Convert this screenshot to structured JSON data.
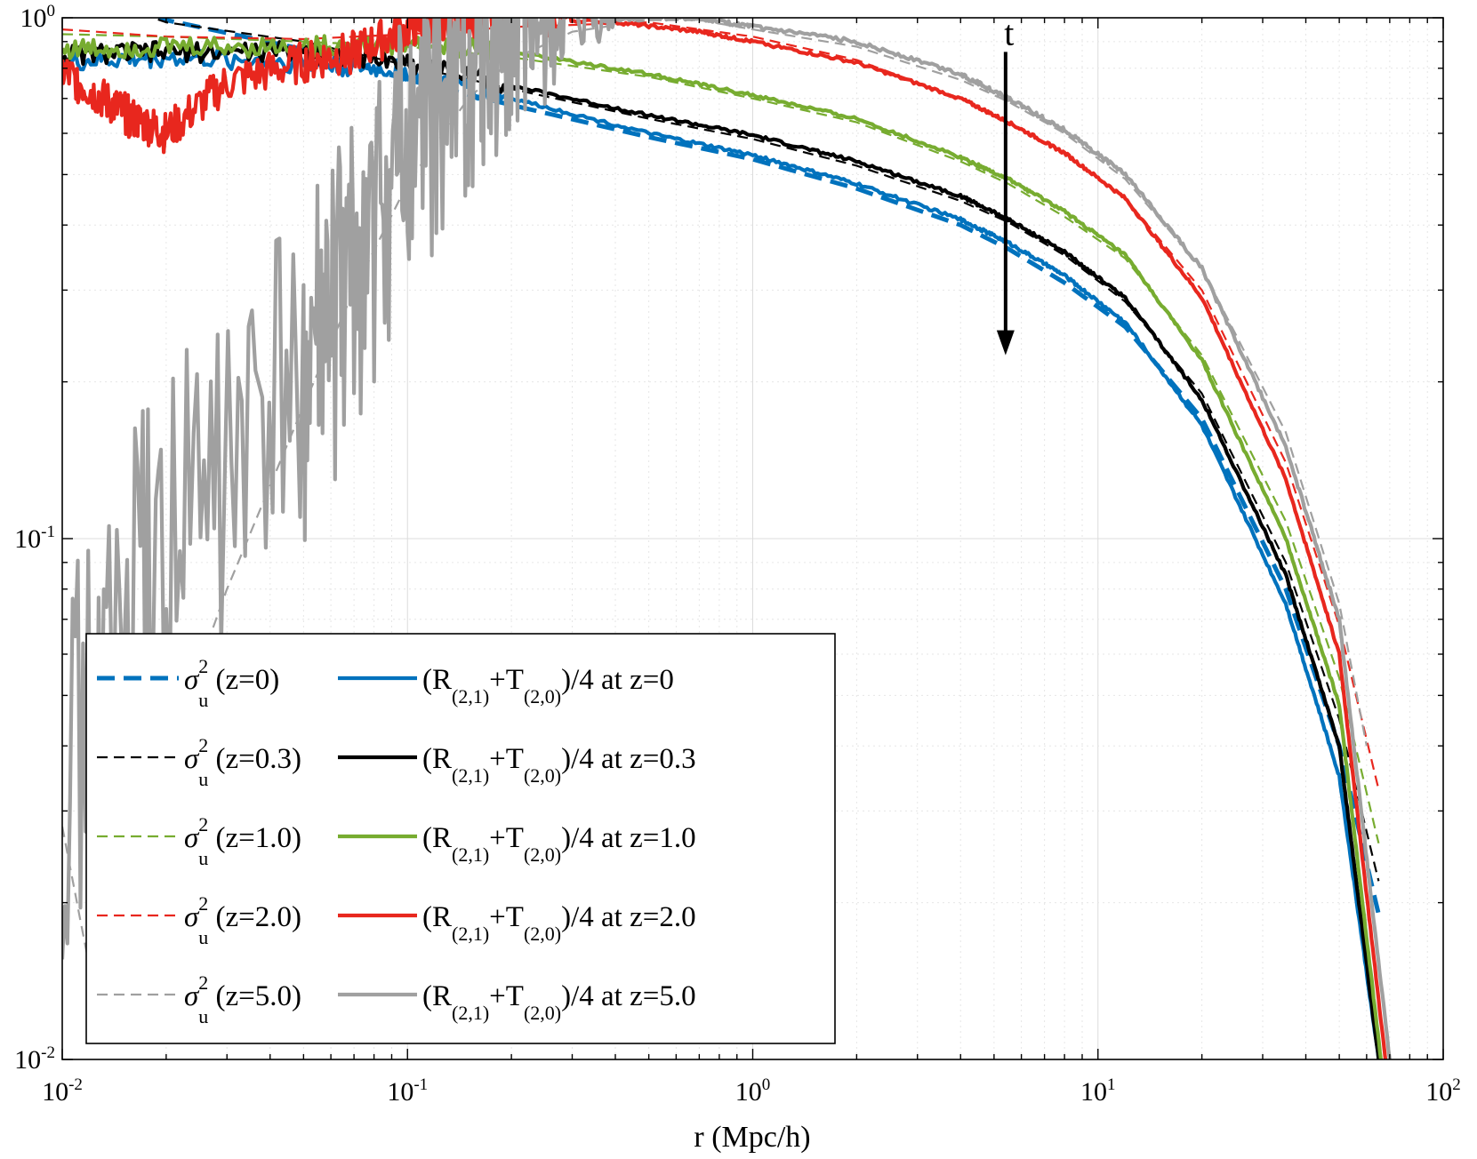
{
  "chart_data": {
    "type": "line",
    "title": "",
    "xlabel": "r (Mpc/h)",
    "ylabel": "",
    "xscale": "log",
    "yscale": "log",
    "xlim": [
      0.01,
      100
    ],
    "ylim": [
      0.01,
      1
    ],
    "grid": true,
    "x_ticks": [
      {
        "base": "10",
        "exp": "-2"
      },
      {
        "base": "10",
        "exp": "-1"
      },
      {
        "base": "10",
        "exp": "0"
      },
      {
        "base": "10",
        "exp": "1"
      },
      {
        "base": "10",
        "exp": "2"
      }
    ],
    "y_ticks": [
      {
        "base": "10",
        "exp": "-2"
      },
      {
        "base": "10",
        "exp": "-1"
      },
      {
        "base": "10",
        "exp": "0"
      }
    ],
    "annotation": {
      "text": "t",
      "x": 5.4,
      "y_from": 0.86,
      "y_to": 0.225
    },
    "legend": {
      "position": "bottom-left",
      "columns": 2,
      "sigma_label": {
        "symbol": "σ",
        "sup": "2",
        "sub": "u"
      },
      "ratio_label": {
        "open": "(R",
        "sub1": "(2,1)",
        "plus": "+T",
        "sub2": "(2,0)",
        "close": ")/4 at"
      }
    },
    "series": [
      {
        "kind": "model",
        "z": "z=0",
        "color": "#0072BD",
        "style": "dashed-thick",
        "x": [
          0.01,
          0.02,
          0.05,
          0.1,
          0.2,
          0.5,
          1,
          2,
          4,
          5.5,
          8,
          12,
          20,
          35,
          50,
          65
        ],
        "y": [
          1.25,
          0.99,
          0.87,
          0.76,
          0.68,
          0.59,
          0.535,
          0.47,
          0.4,
          0.36,
          0.31,
          0.255,
          0.17,
          0.08,
          0.04,
          0.019
        ]
      },
      {
        "kind": "model",
        "z": "z=0.3",
        "color": "#000000",
        "style": "dashed-thin",
        "x": [
          0.01,
          0.02,
          0.05,
          0.1,
          0.2,
          0.5,
          1,
          2,
          4,
          5.5,
          8,
          12,
          20,
          35,
          50,
          65
        ],
        "y": [
          1.15,
          0.98,
          0.9,
          0.81,
          0.73,
          0.64,
          0.585,
          0.52,
          0.445,
          0.405,
          0.35,
          0.285,
          0.19,
          0.09,
          0.045,
          0.022
        ]
      },
      {
        "kind": "model",
        "z": "z=1.0",
        "color": "#77AC30",
        "style": "dashed-thin",
        "x": [
          0.01,
          0.02,
          0.05,
          0.1,
          0.2,
          0.5,
          1,
          2,
          4,
          5.5,
          8,
          12,
          20,
          35,
          50,
          65
        ],
        "y": [
          0.93,
          0.92,
          0.9,
          0.88,
          0.84,
          0.77,
          0.7,
          0.63,
          0.53,
          0.48,
          0.415,
          0.345,
          0.225,
          0.108,
          0.054,
          0.026
        ]
      },
      {
        "kind": "model",
        "z": "z=2.0",
        "color": "#E8271E",
        "style": "dashed-thin",
        "x": [
          0.01,
          0.02,
          0.05,
          0.1,
          0.2,
          0.5,
          1,
          2,
          4,
          5.5,
          8,
          12,
          20,
          35,
          50,
          65
        ],
        "y": [
          0.95,
          0.92,
          0.91,
          0.93,
          0.96,
          0.98,
          0.92,
          0.83,
          0.7,
          0.63,
          0.55,
          0.45,
          0.3,
          0.14,
          0.068,
          0.033
        ]
      },
      {
        "kind": "model",
        "z": "z=5.0",
        "color": "#A0A0A0",
        "style": "dashed-thin",
        "x": [
          0.01,
          0.012,
          0.015,
          0.02,
          0.03,
          0.05,
          0.07,
          0.1,
          0.15,
          0.2,
          0.3,
          0.5,
          0.7,
          1,
          2,
          4,
          5.5,
          8,
          12,
          20,
          35,
          50,
          60
        ],
        "y": [
          0.028,
          0.015,
          0.02,
          0.038,
          0.08,
          0.18,
          0.3,
          0.48,
          0.7,
          0.83,
          0.94,
          0.99,
          0.99,
          0.95,
          0.88,
          0.76,
          0.69,
          0.6,
          0.49,
          0.33,
          0.16,
          0.075,
          0.04
        ]
      },
      {
        "kind": "sim",
        "z": "z=0",
        "color": "#0072BD",
        "style": "solid",
        "x": [
          0.01,
          0.02,
          0.05,
          0.1,
          0.2,
          0.5,
          1,
          2,
          4,
          5.5,
          8,
          12,
          20,
          35,
          50,
          65
        ],
        "y": [
          0.82,
          0.84,
          0.82,
          0.79,
          0.7,
          0.6,
          0.545,
          0.48,
          0.41,
          0.37,
          0.32,
          0.26,
          0.165,
          0.075,
          0.035,
          0.01
        ]
      },
      {
        "kind": "sim",
        "z": "z=0.3",
        "color": "#000000",
        "style": "solid",
        "x": [
          0.01,
          0.02,
          0.05,
          0.1,
          0.2,
          0.5,
          1,
          2,
          4,
          5.5,
          8,
          12,
          20,
          35,
          50,
          65
        ],
        "y": [
          0.85,
          0.86,
          0.86,
          0.82,
          0.74,
          0.65,
          0.595,
          0.53,
          0.455,
          0.41,
          0.355,
          0.29,
          0.185,
          0.085,
          0.04,
          0.01
        ]
      },
      {
        "kind": "sim",
        "z": "z=1.0",
        "color": "#77AC30",
        "style": "solid",
        "x": [
          0.01,
          0.02,
          0.05,
          0.1,
          0.2,
          0.5,
          1,
          2,
          4,
          5.5,
          8,
          12,
          20,
          35,
          50,
          66
        ],
        "y": [
          0.87,
          0.88,
          0.88,
          0.89,
          0.86,
          0.78,
          0.71,
          0.64,
          0.54,
          0.49,
          0.425,
          0.35,
          0.22,
          0.1,
          0.048,
          0.01
        ]
      },
      {
        "kind": "sim",
        "z": "z=2.0",
        "color": "#E8271E",
        "style": "solid",
        "x": [
          0.01,
          0.013,
          0.016,
          0.02,
          0.03,
          0.05,
          0.07,
          0.1,
          0.13,
          0.2,
          0.4,
          0.7,
          1,
          2,
          4,
          5.5,
          8,
          12,
          20,
          35,
          50,
          68
        ],
        "y": [
          0.79,
          0.7,
          0.64,
          0.6,
          0.75,
          0.82,
          0.86,
          0.95,
          1.0,
          1.0,
          0.98,
          0.94,
          0.9,
          0.82,
          0.7,
          0.63,
          0.55,
          0.45,
          0.29,
          0.13,
          0.06,
          0.01
        ]
      },
      {
        "kind": "sim",
        "z": "z=5.0",
        "color": "#A0A0A0",
        "style": "solid",
        "x": [
          0.01,
          0.02,
          0.05,
          0.07,
          0.1,
          0.15,
          0.2,
          0.3,
          0.5,
          0.7,
          1,
          2,
          4,
          5.5,
          8,
          12,
          20,
          35,
          50,
          70
        ],
        "y": [
          0.035,
          0.1,
          0.2,
          0.32,
          0.55,
          0.8,
          0.93,
          0.98,
          1.0,
          1.0,
          0.96,
          0.9,
          0.78,
          0.7,
          0.61,
          0.5,
          0.33,
          0.15,
          0.07,
          0.01
        ]
      }
    ]
  }
}
